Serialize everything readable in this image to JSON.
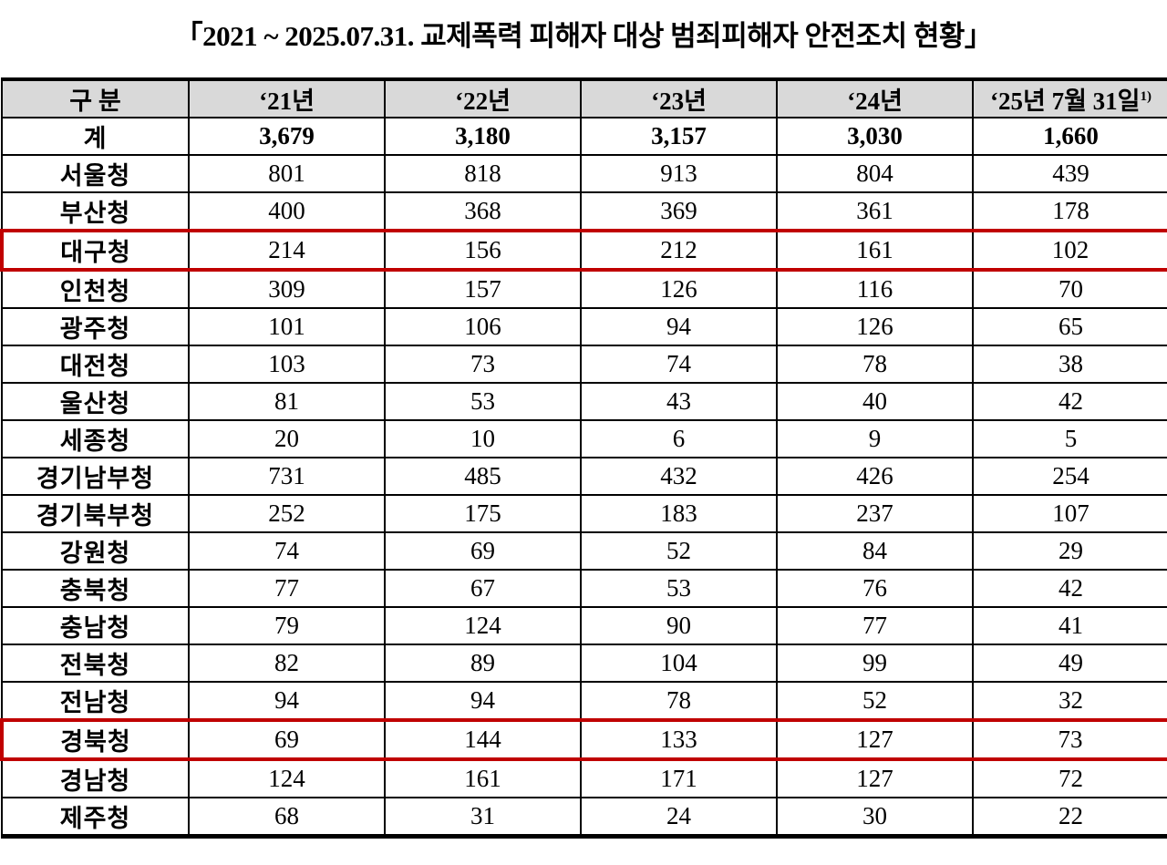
{
  "title": "「2021 ~ 2025.07.31. 교제폭력 피해자 대상 범죄피해자 안전조치 현황」",
  "table": {
    "corner_label": "구 분",
    "year_columns": [
      {
        "text": "‘21년",
        "sup": ""
      },
      {
        "text": "‘22년",
        "sup": ""
      },
      {
        "text": "‘23년",
        "sup": ""
      },
      {
        "text": "‘24년",
        "sup": ""
      },
      {
        "text": "‘25년 7월 31일",
        "sup": "1)"
      }
    ],
    "rows": [
      {
        "label": "계",
        "values": [
          "3,679",
          "3,180",
          "3,157",
          "3,030",
          "1,660"
        ],
        "total": true,
        "highlighted": false
      },
      {
        "label": "서울청",
        "values": [
          "801",
          "818",
          "913",
          "804",
          "439"
        ],
        "total": false,
        "highlighted": false
      },
      {
        "label": "부산청",
        "values": [
          "400",
          "368",
          "369",
          "361",
          "178"
        ],
        "total": false,
        "highlighted": false
      },
      {
        "label": "대구청",
        "values": [
          "214",
          "156",
          "212",
          "161",
          "102"
        ],
        "total": false,
        "highlighted": true
      },
      {
        "label": "인천청",
        "values": [
          "309",
          "157",
          "126",
          "116",
          "70"
        ],
        "total": false,
        "highlighted": false
      },
      {
        "label": "광주청",
        "values": [
          "101",
          "106",
          "94",
          "126",
          "65"
        ],
        "total": false,
        "highlighted": false
      },
      {
        "label": "대전청",
        "values": [
          "103",
          "73",
          "74",
          "78",
          "38"
        ],
        "total": false,
        "highlighted": false
      },
      {
        "label": "울산청",
        "values": [
          "81",
          "53",
          "43",
          "40",
          "42"
        ],
        "total": false,
        "highlighted": false
      },
      {
        "label": "세종청",
        "values": [
          "20",
          "10",
          "6",
          "9",
          "5"
        ],
        "total": false,
        "highlighted": false
      },
      {
        "label": "경기남부청",
        "values": [
          "731",
          "485",
          "432",
          "426",
          "254"
        ],
        "total": false,
        "highlighted": false
      },
      {
        "label": "경기북부청",
        "values": [
          "252",
          "175",
          "183",
          "237",
          "107"
        ],
        "total": false,
        "highlighted": false
      },
      {
        "label": "강원청",
        "values": [
          "74",
          "69",
          "52",
          "84",
          "29"
        ],
        "total": false,
        "highlighted": false
      },
      {
        "label": "충북청",
        "values": [
          "77",
          "67",
          "53",
          "76",
          "42"
        ],
        "total": false,
        "highlighted": false
      },
      {
        "label": "충남청",
        "values": [
          "79",
          "124",
          "90",
          "77",
          "41"
        ],
        "total": false,
        "highlighted": false
      },
      {
        "label": "전북청",
        "values": [
          "82",
          "89",
          "104",
          "99",
          "49"
        ],
        "total": false,
        "highlighted": false
      },
      {
        "label": "전남청",
        "values": [
          "94",
          "94",
          "78",
          "52",
          "32"
        ],
        "total": false,
        "highlighted": false
      },
      {
        "label": "경북청",
        "values": [
          "69",
          "144",
          "133",
          "127",
          "73"
        ],
        "total": false,
        "highlighted": true
      },
      {
        "label": "경남청",
        "values": [
          "124",
          "161",
          "171",
          "127",
          "72"
        ],
        "total": false,
        "highlighted": false
      },
      {
        "label": "제주청",
        "values": [
          "68",
          "31",
          "24",
          "30",
          "22"
        ],
        "total": false,
        "highlighted": false
      }
    ]
  },
  "colors": {
    "header_bg": "#d9d9d9",
    "grid_border": "#000000",
    "highlight_box": "#c00000",
    "text": "#000000"
  }
}
